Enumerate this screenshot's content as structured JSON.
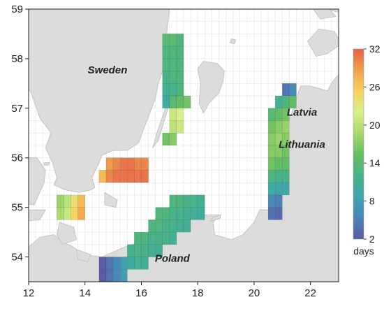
{
  "map": {
    "lon_range": [
      12,
      23
    ],
    "lat_range": [
      53.5,
      59
    ],
    "grid_step": 0.25,
    "x_ticks": [
      "12",
      "14",
      "16",
      "18",
      "20",
      "22"
    ],
    "y_ticks": [
      "54",
      "55",
      "56",
      "57",
      "58",
      "59"
    ],
    "colors": {
      "land": "#dcdcdc",
      "coast": "#bdbdbd",
      "sea": "#ffffff",
      "grid": "#e3e3e3",
      "frame": "#222222"
    }
  },
  "places": [
    {
      "name": "Sweden",
      "lon": 14.8,
      "lat": 57.7
    },
    {
      "name": "Latvia",
      "lon": 21.7,
      "lat": 56.85
    },
    {
      "name": "Lithuania",
      "lon": 21.7,
      "lat": 56.2
    },
    {
      "name": "Poland",
      "lon": 17.1,
      "lat": 53.9
    }
  ],
  "colorbar": {
    "min": 2,
    "max": 32,
    "ticks": [
      "32",
      "26",
      "20",
      "14",
      "8",
      "2"
    ],
    "unit": "days",
    "colors": [
      "#5b5ba5",
      "#4a84b8",
      "#3da5ae",
      "#48b38a",
      "#66bd63",
      "#a6d96a",
      "#d9ef8b",
      "#f6d25e",
      "#f0a04d",
      "#e7614a"
    ]
  },
  "regions": [
    {
      "name": "swedish-east-coast-north",
      "lon0": 16.75,
      "lat0": 58.5,
      "rows": [
        [
          14,
          14,
          13
        ],
        [
          13,
          13,
          13
        ],
        [
          13,
          13,
          13
        ],
        [
          12,
          13,
          13
        ],
        [
          11,
          12,
          13
        ],
        [
          10,
          11,
          0
        ]
      ]
    },
    {
      "name": "oland-east",
      "lon0": 16.75,
      "lat0": 57.25,
      "rows": [
        [
          0,
          14,
          15,
          16
        ],
        [
          0,
          21,
          22,
          0
        ],
        [
          0,
          20,
          21,
          0
        ],
        [
          16,
          17,
          0,
          0
        ]
      ]
    },
    {
      "name": "south-sweden-shelf",
      "lon0": 14.5,
      "lat0": 56.0,
      "rows": [
        [
          0,
          29,
          30,
          31,
          31,
          30,
          30
        ],
        [
          27,
          30,
          31,
          31,
          31,
          31,
          31
        ]
      ]
    },
    {
      "name": "skane-south",
      "lon0": 13.0,
      "lat0": 55.25,
      "rows": [
        [
          18,
          20,
          24,
          27,
          0
        ],
        [
          19,
          21,
          25,
          28,
          0
        ]
      ]
    },
    {
      "name": "polish-coast",
      "lon0": 14.5,
      "lat0": 55.25,
      "rows": [
        [
          0,
          0,
          0,
          0,
          0,
          0,
          0,
          0,
          0,
          0,
          13,
          13,
          12,
          12,
          11
        ],
        [
          0,
          0,
          0,
          0,
          0,
          0,
          0,
          0,
          13,
          13,
          12,
          12,
          11,
          11,
          10
        ],
        [
          0,
          0,
          0,
          0,
          0,
          0,
          0,
          13,
          13,
          12,
          12,
          11,
          11,
          0,
          0
        ],
        [
          0,
          0,
          0,
          0,
          0,
          13,
          13,
          12,
          12,
          12,
          11,
          0,
          0,
          0,
          0
        ],
        [
          0,
          0,
          0,
          0,
          12,
          12,
          12,
          11,
          11,
          0,
          0,
          0,
          0,
          0,
          0
        ],
        [
          2,
          4,
          6,
          8,
          10,
          11,
          11,
          0,
          0,
          0,
          0,
          0,
          0,
          0,
          0
        ],
        [
          2,
          4,
          6,
          8,
          0,
          0,
          0,
          0,
          0,
          0,
          0,
          0,
          0,
          0,
          0
        ],
        [
          2,
          0,
          0,
          0,
          0,
          0,
          0,
          0,
          0,
          0,
          0,
          0,
          0,
          0,
          0
        ]
      ]
    },
    {
      "name": "baltic-states-coast",
      "lon0": 20.5,
      "lat0": 57.5,
      "rows": [
        [
          0,
          0,
          4,
          6,
          0
        ],
        [
          0,
          11,
          13,
          15,
          0
        ],
        [
          14,
          15,
          16,
          0,
          0
        ],
        [
          16,
          17,
          18,
          0,
          0
        ],
        [
          17,
          18,
          17,
          0,
          0
        ],
        [
          17,
          17,
          16,
          0,
          0
        ],
        [
          16,
          15,
          15,
          0,
          0
        ],
        [
          13,
          12,
          12,
          0,
          0
        ],
        [
          10,
          9,
          9,
          0,
          0
        ],
        [
          6,
          5,
          0,
          0,
          0
        ],
        [
          4,
          3,
          0,
          0,
          0
        ]
      ]
    }
  ]
}
